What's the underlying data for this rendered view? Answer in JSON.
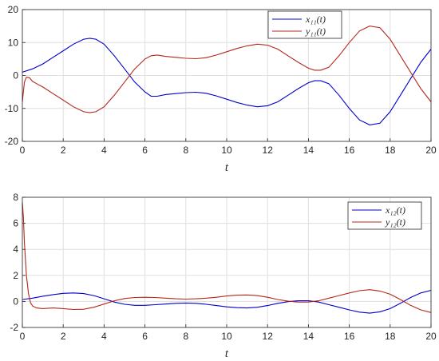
{
  "chart_data": [
    {
      "type": "line",
      "title": "",
      "xlabel": "t",
      "ylabel": "",
      "xlim": [
        0,
        20
      ],
      "ylim": [
        -20,
        20
      ],
      "xticks": [
        "0",
        "2",
        "4",
        "6",
        "8",
        "10",
        "12",
        "14",
        "16",
        "18",
        "20"
      ],
      "yticks": [
        "20",
        "10",
        "0",
        "-10",
        "-20"
      ],
      "grid": true,
      "legend_position": "top-right",
      "series": [
        {
          "name": "x₁₁(t)",
          "color": "#0000cc",
          "x": [
            0,
            0.5,
            1,
            1.5,
            2,
            2.5,
            3,
            3.3,
            3.6,
            4,
            4.5,
            5,
            5.5,
            6,
            6.3,
            6.6,
            7,
            7.5,
            8,
            8.5,
            9,
            9.5,
            10,
            10.5,
            11,
            11.5,
            12,
            12.5,
            13,
            13.5,
            14,
            14.3,
            14.6,
            15,
            15.5,
            16,
            16.5,
            17,
            17.5,
            18,
            18.5,
            19,
            19.5,
            20
          ],
          "y": [
            1,
            2,
            3.5,
            5.5,
            7.5,
            9.5,
            11,
            11.3,
            11,
            9.5,
            6,
            2,
            -2,
            -5,
            -6.3,
            -6.3,
            -5.8,
            -5.5,
            -5.2,
            -5.1,
            -5.4,
            -6.2,
            -7.2,
            -8.2,
            -9,
            -9.5,
            -9.2,
            -8,
            -6,
            -4,
            -2.2,
            -1.6,
            -1.6,
            -2.5,
            -6,
            -10,
            -13.5,
            -15,
            -14.5,
            -11,
            -6,
            -1,
            4,
            8
          ]
        },
        {
          "name": "y₁₁(t)",
          "color": "#b5271b",
          "x": [
            0,
            0.1,
            0.2,
            0.35,
            0.5,
            0.7,
            1,
            1.5,
            2,
            2.5,
            3,
            3.3,
            3.6,
            4,
            4.5,
            5,
            5.5,
            6,
            6.3,
            6.6,
            7,
            7.5,
            8,
            8.5,
            9,
            9.5,
            10,
            10.5,
            11,
            11.5,
            12,
            12.5,
            13,
            13.5,
            14,
            14.3,
            14.6,
            15,
            15.5,
            16,
            16.5,
            17,
            17.5,
            18,
            18.5,
            19,
            19.5,
            20
          ],
          "y": [
            -8,
            -2,
            -0.5,
            -0.7,
            -1.8,
            -2.5,
            -3.5,
            -5.5,
            -7.5,
            -9.5,
            -11,
            -11.3,
            -11,
            -9.5,
            -6,
            -2,
            2,
            5,
            6,
            6.2,
            5.8,
            5.5,
            5.2,
            5.1,
            5.4,
            6.2,
            7.2,
            8.2,
            9,
            9.5,
            9.2,
            8,
            6,
            4,
            2.2,
            1.6,
            1.6,
            2.5,
            6,
            10,
            13.5,
            15,
            14.5,
            11,
            6,
            1,
            -4,
            -8
          ]
        }
      ]
    },
    {
      "type": "line",
      "title": "",
      "xlabel": "t",
      "ylabel": "",
      "xlim": [
        0,
        20
      ],
      "ylim": [
        -2,
        8
      ],
      "xticks": [
        "0",
        "2",
        "4",
        "6",
        "8",
        "10",
        "12",
        "14",
        "16",
        "18",
        "20"
      ],
      "yticks": [
        "8",
        "6",
        "4",
        "2",
        "0",
        "-2"
      ],
      "grid": true,
      "legend_position": "top-right",
      "series": [
        {
          "name": "x₁₂(t)",
          "color": "#0000cc",
          "x": [
            0,
            0.5,
            1,
            1.5,
            2,
            2.5,
            3,
            3.5,
            4,
            4.5,
            5,
            5.5,
            6,
            6.5,
            7,
            7.5,
            8,
            8.5,
            9,
            9.5,
            10,
            10.5,
            11,
            11.5,
            12,
            12.5,
            13,
            13.5,
            14,
            14.5,
            15,
            15.5,
            16,
            16.5,
            17,
            17.5,
            18,
            18.5,
            19,
            19.5,
            20
          ],
          "y": [
            0.15,
            0.25,
            0.4,
            0.52,
            0.62,
            0.65,
            0.6,
            0.45,
            0.2,
            -0.05,
            -0.22,
            -0.3,
            -0.3,
            -0.25,
            -0.2,
            -0.15,
            -0.12,
            -0.15,
            -0.22,
            -0.32,
            -0.42,
            -0.48,
            -0.5,
            -0.45,
            -0.32,
            -0.15,
            -0.02,
            0.05,
            0.05,
            -0.05,
            -0.25,
            -0.45,
            -0.65,
            -0.82,
            -0.9,
            -0.8,
            -0.55,
            -0.15,
            0.3,
            0.65,
            0.85
          ]
        },
        {
          "name": "y₁₂(t)",
          "color": "#b5271b",
          "x": [
            0,
            0.05,
            0.1,
            0.2,
            0.3,
            0.4,
            0.5,
            0.7,
            1,
            1.5,
            2,
            2.5,
            3,
            3.5,
            4,
            4.5,
            5,
            5.5,
            6,
            6.5,
            7,
            7.5,
            8,
            8.5,
            9,
            9.5,
            10,
            10.5,
            11,
            11.5,
            12,
            12.5,
            13,
            13.5,
            14,
            14.5,
            15,
            15.5,
            16,
            16.5,
            17,
            17.5,
            18,
            18.5,
            19,
            19.5,
            20
          ],
          "y": [
            7.6,
            6.5,
            4.5,
            2,
            0.6,
            -0.1,
            -0.35,
            -0.5,
            -0.55,
            -0.5,
            -0.55,
            -0.62,
            -0.6,
            -0.45,
            -0.2,
            0.05,
            0.22,
            0.3,
            0.32,
            0.3,
            0.25,
            0.2,
            0.18,
            0.2,
            0.25,
            0.32,
            0.42,
            0.48,
            0.5,
            0.45,
            0.32,
            0.15,
            0.02,
            -0.05,
            -0.05,
            0.05,
            0.25,
            0.45,
            0.65,
            0.82,
            0.9,
            0.8,
            0.55,
            0.15,
            -0.3,
            -0.65,
            -0.85
          ]
        }
      ]
    }
  ]
}
